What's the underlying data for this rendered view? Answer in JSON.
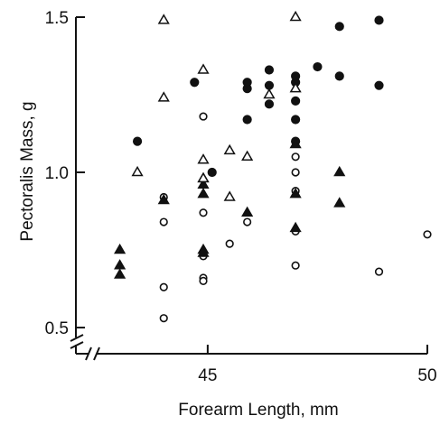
{
  "chart_data": {
    "type": "scatter",
    "xlabel": "Forearm Length, mm",
    "ylabel": "Pectoralis Mass, g",
    "xlim": [
      42.0,
      50.0
    ],
    "ylim": [
      0.5,
      1.5
    ],
    "y_axis_break": true,
    "x_axis_break": true,
    "x_ticks": [
      45,
      50
    ],
    "x_tick_labels": [
      "45",
      "50"
    ],
    "y_ticks": [
      0.5,
      1.0,
      1.5
    ],
    "y_tick_labels": [
      "0.5",
      "1.0",
      "1.5"
    ],
    "grid": false,
    "legend": "none",
    "series": [
      {
        "marker": "filled-circle",
        "points": [
          [
            43.4,
            1.1
          ],
          [
            44.7,
            1.29
          ],
          [
            45.1,
            1.0
          ],
          [
            45.9,
            1.17
          ],
          [
            45.9,
            1.27
          ],
          [
            45.9,
            1.29
          ],
          [
            46.4,
            1.22
          ],
          [
            46.4,
            1.28
          ],
          [
            46.4,
            1.33
          ],
          [
            47.0,
            1.1
          ],
          [
            47.0,
            1.17
          ],
          [
            47.0,
            1.23
          ],
          [
            47.0,
            1.29
          ],
          [
            47.0,
            1.31
          ],
          [
            47.5,
            1.34
          ],
          [
            48.0,
            1.47
          ],
          [
            48.0,
            1.31
          ],
          [
            48.9,
            1.49
          ],
          [
            48.9,
            1.28
          ]
        ]
      },
      {
        "marker": "open-circle",
        "points": [
          [
            44.0,
            0.92
          ],
          [
            44.0,
            0.84
          ],
          [
            44.0,
            0.63
          ],
          [
            44.0,
            0.53
          ],
          [
            44.9,
            1.18
          ],
          [
            44.9,
            0.87
          ],
          [
            44.9,
            0.73
          ],
          [
            44.9,
            0.66
          ],
          [
            44.9,
            0.65
          ],
          [
            45.5,
            0.77
          ],
          [
            45.9,
            0.84
          ],
          [
            47.0,
            1.05
          ],
          [
            47.0,
            1.0
          ],
          [
            47.0,
            0.94
          ],
          [
            47.0,
            0.81
          ],
          [
            47.0,
            0.7
          ],
          [
            48.9,
            0.68
          ],
          [
            50.0,
            0.8
          ]
        ]
      },
      {
        "marker": "filled-triangle",
        "points": [
          [
            43.0,
            0.75
          ],
          [
            43.0,
            0.7
          ],
          [
            43.0,
            0.67
          ],
          [
            44.0,
            0.91
          ],
          [
            44.9,
            0.98
          ],
          [
            44.9,
            0.96
          ],
          [
            44.9,
            0.93
          ],
          [
            44.9,
            0.75
          ],
          [
            44.9,
            0.74
          ],
          [
            45.9,
            0.87
          ],
          [
            47.0,
            1.09
          ],
          [
            47.0,
            0.93
          ],
          [
            47.0,
            0.82
          ],
          [
            48.0,
            1.0
          ],
          [
            48.0,
            0.9
          ]
        ]
      },
      {
        "marker": "open-triangle",
        "points": [
          [
            43.4,
            1.0
          ],
          [
            44.0,
            1.49
          ],
          [
            44.0,
            1.24
          ],
          [
            44.9,
            1.33
          ],
          [
            44.9,
            1.04
          ],
          [
            44.9,
            0.98
          ],
          [
            45.5,
            1.07
          ],
          [
            45.5,
            0.92
          ],
          [
            45.9,
            1.05
          ],
          [
            46.4,
            1.25
          ],
          [
            47.0,
            1.5
          ],
          [
            47.0,
            1.27
          ]
        ]
      }
    ]
  }
}
